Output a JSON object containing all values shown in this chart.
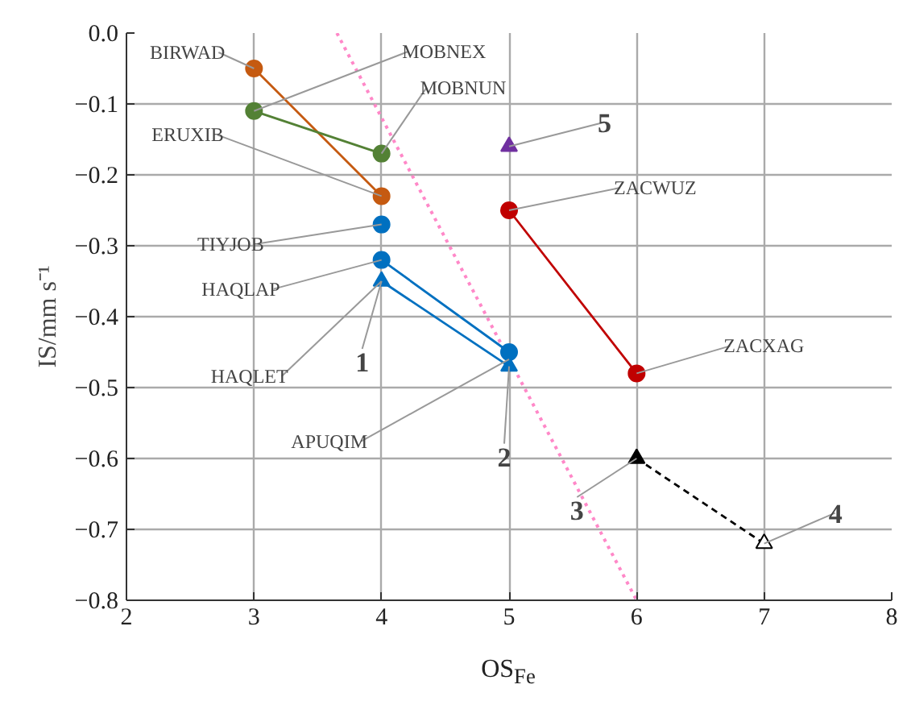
{
  "chart_data": {
    "type": "line",
    "xlabel": "OS$_{Fe}$",
    "ylabel": "IS/mm s⁻¹",
    "xlim": [
      2,
      8
    ],
    "xticks": [
      2,
      3,
      4,
      5,
      6,
      7,
      8
    ],
    "ylim": [
      -0.8,
      0.0
    ],
    "yticks": [
      {
        "value": 0,
        "label": "0.0"
      },
      {
        "value": -0.1,
        "label": "−0.1"
      },
      {
        "value": -0.2,
        "label": "−0.2"
      },
      {
        "value": -0.3,
        "label": "−0.3"
      },
      {
        "value": -0.4,
        "label": "−0.4"
      },
      {
        "value": -0.5,
        "label": "−0.5"
      },
      {
        "value": -0.6,
        "label": "−0.6"
      },
      {
        "value": -0.7,
        "label": "−0.7"
      },
      {
        "value": -0.8,
        "label": "−0.8"
      }
    ],
    "grid": true,
    "marker": "circle",
    "line_style": "solid",
    "series": [
      {
        "color": "#ff88c8",
        "x": [
          3.65,
          6
        ],
        "values": [
          0.0,
          -0.8
        ],
        "marker": "none",
        "line_style": "dotted"
      },
      {
        "color": "#c55a11",
        "x": [
          3,
          4
        ],
        "values": [
          -0.05,
          -0.23
        ]
      },
      {
        "color": "#538135",
        "x": [
          3,
          4
        ],
        "values": [
          -0.11,
          -0.17
        ]
      },
      {
        "type": "scatter",
        "color": "#0070c0",
        "x": [
          4
        ],
        "values": [
          -0.27
        ]
      },
      {
        "color": "#0070c0",
        "x": [
          4,
          5
        ],
        "values": [
          -0.32,
          -0.45
        ]
      },
      {
        "color": "#0070c0",
        "x": [
          4,
          5
        ],
        "values": [
          -0.35,
          -0.47
        ],
        "marker": "triangle"
      },
      {
        "type": "scatter",
        "color": "#7030a0",
        "x": [
          5
        ],
        "values": [
          -0.16
        ],
        "marker": "triangle"
      },
      {
        "color": "#c00000",
        "x": [
          5,
          6
        ],
        "values": [
          -0.25,
          -0.48
        ]
      },
      {
        "color": "#000000",
        "colors": [
          "#000000",
          "#ffffff"
        ],
        "x": [
          6,
          7
        ],
        "values": [
          -0.6,
          -0.72
        ],
        "marker": "triangle",
        "line_style": "dashed"
      }
    ],
    "annotations": [
      {
        "text": "BIRWAD",
        "x": 3,
        "y": -0.05
      },
      {
        "text": "MOBNEX",
        "x": 3,
        "y": -0.11
      },
      {
        "text": "MOBNUN",
        "x": 4,
        "y": -0.17
      },
      {
        "text": "ERUXIB",
        "x": 4,
        "y": -0.23
      },
      {
        "text": "TIYJOB",
        "x": 4,
        "y": -0.27
      },
      {
        "text": "HAQLAP",
        "x": 4,
        "y": -0.32
      },
      {
        "text": "HAQLET",
        "x": 4,
        "y": -0.35
      },
      {
        "text": "1",
        "x": 4,
        "y": -0.35
      },
      {
        "text": "APUQIM",
        "x": 5,
        "y": -0.46
      },
      {
        "text": "2",
        "x": 5,
        "y": -0.47
      },
      {
        "text": "5",
        "x": 5,
        "y": -0.16
      },
      {
        "text": "ZACWUZ",
        "x": 5,
        "y": -0.25
      },
      {
        "text": "ZACXAG",
        "x": 6,
        "y": -0.48
      },
      {
        "text": "3",
        "x": 6,
        "y": -0.6
      },
      {
        "text": "4",
        "x": 7,
        "y": -0.72
      }
    ]
  }
}
